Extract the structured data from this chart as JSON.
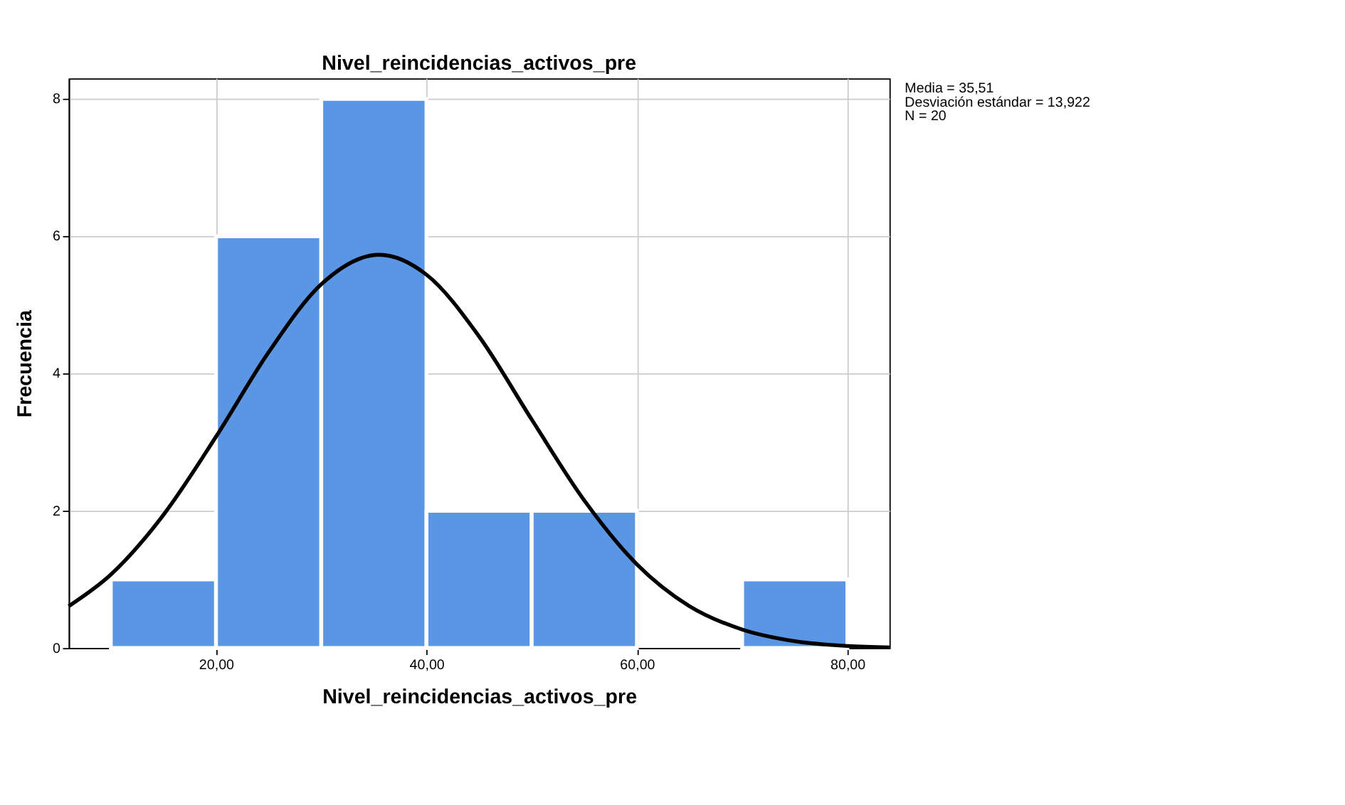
{
  "chart_data": {
    "type": "histogram",
    "title": "Nivel_reincidencias_activos_pre",
    "xlabel": "Nivel_reincidencias_activos_pre",
    "ylabel": "Frecuencia",
    "bins": [
      10,
      20,
      30,
      40,
      50,
      60,
      70,
      80
    ],
    "values": [
      1,
      6,
      8,
      2,
      2,
      0,
      1
    ],
    "color": "#5a96e3",
    "series": [
      {
        "type": "line",
        "color": "#000000",
        "x": [
          6,
          10,
          15,
          20,
          25,
          30,
          35.5,
          40,
          45,
          50,
          55,
          60,
          65,
          70,
          75,
          80,
          84
        ],
        "values": [
          0.61,
          1.07,
          1.94,
          3.08,
          4.31,
          5.3,
          5.73,
          5.44,
          4.54,
          3.33,
          2.15,
          1.22,
          0.61,
          0.27,
          0.1,
          0.03,
          0.01
        ]
      }
    ],
    "xlim": [
      6,
      84
    ],
    "xticks": [
      {
        "value": 20,
        "label": "20,00"
      },
      {
        "value": 40,
        "label": "40,00"
      },
      {
        "value": 60,
        "label": "60,00"
      },
      {
        "value": 80,
        "label": "80,00"
      }
    ],
    "ylim": [
      0,
      8.3
    ],
    "yticks": [
      0,
      2,
      4,
      6,
      8
    ],
    "grid": true,
    "annotations": [
      "Media = 35,51",
      "Desviación estándar = 13,922",
      "N = 20"
    ]
  }
}
